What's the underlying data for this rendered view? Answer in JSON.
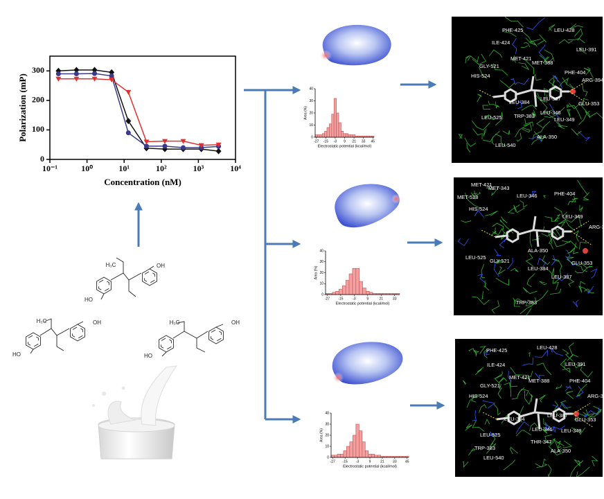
{
  "chart_data": [
    {
      "type": "line",
      "x_label": "Concentration (nM)",
      "y_label": "Polarization (mP)",
      "x_scale": "log",
      "xlim": [
        0.1,
        10000
      ],
      "xticks": [
        {
          "value": 0.1,
          "label": "10⁻¹"
        },
        {
          "value": 1,
          "label": "10⁰"
        },
        {
          "value": 10,
          "label": "10¹"
        },
        {
          "value": 100,
          "label": "10²"
        },
        {
          "value": 1000,
          "label": "10³"
        },
        {
          "value": 10000,
          "label": "10⁴"
        }
      ],
      "ylim": [
        0,
        350
      ],
      "yticks": [
        0,
        100,
        200,
        300
      ],
      "x": [
        0.17,
        0.52,
        1.6,
        4.6,
        13,
        40,
        125,
        390,
        1200,
        3500
      ],
      "series": [
        {
          "color": "#111111",
          "marker": "diamond",
          "values": [
            300,
            303,
            303,
            295,
            130,
            38,
            35,
            35,
            35,
            28
          ]
        },
        {
          "color": "#3a3a8c",
          "marker": "circle",
          "values": [
            290,
            290,
            291,
            283,
            90,
            45,
            45,
            40,
            40,
            44
          ]
        },
        {
          "color": "#e03030",
          "marker": "triangle",
          "values": [
            273,
            273,
            273,
            270,
            228,
            60,
            62,
            62,
            48,
            50
          ]
        }
      ]
    },
    {
      "type": "histogram",
      "x_label": "Electrostatic potential (kcal/mol)",
      "y_label": "Area (%)",
      "bins": [
        -28.5,
        -25.5,
        -22.5,
        -19.5,
        -16.5,
        -13.5,
        -10.5,
        -7.5,
        -4.5,
        -1.5,
        1.5,
        4.5,
        7.5,
        10.5,
        13.5,
        16.5,
        19.5,
        22.5,
        25.5,
        28.5,
        31.5,
        34.5,
        37.5,
        40.5,
        43.5,
        46.5
      ],
      "values": [
        2,
        2,
        2,
        3,
        5,
        8,
        11,
        19,
        32,
        20,
        12,
        5,
        3,
        3,
        2,
        2,
        2,
        1,
        1,
        1,
        1,
        1,
        1,
        1,
        1
      ],
      "xlim": [
        -28.5,
        46.5
      ],
      "xticks": [
        -27,
        -15,
        -3,
        9,
        21,
        33,
        45
      ],
      "ylim": [
        0,
        40
      ],
      "yticks": [
        0,
        10,
        20,
        30,
        40
      ],
      "color": "#f2a0a0"
    },
    {
      "type": "histogram",
      "x_label": "Electrostatic potential (kcal/mol)",
      "y_label": "Area (%)",
      "bins": [
        -28.5,
        -25.5,
        -22.5,
        -19.5,
        -16.5,
        -13.5,
        -10.5,
        -7.5,
        -4.5,
        -1.5,
        1.5,
        4.5,
        7.5,
        10.5,
        13.5,
        16.5,
        19.5,
        22.5,
        25.5,
        28.5,
        31.5,
        34.5,
        37.5
      ],
      "values": [
        1,
        1,
        2,
        3,
        5,
        8,
        13,
        19,
        24,
        24,
        12,
        6,
        3,
        2,
        1,
        1,
        1,
        1,
        1,
        1,
        1,
        1
      ],
      "xlim": [
        -28.5,
        37.5
      ],
      "xticks": [
        -27,
        -15,
        -3,
        9,
        21,
        33
      ],
      "ylim": [
        0,
        40
      ],
      "yticks": [
        0,
        10,
        20,
        30,
        40
      ],
      "color": "#f2a0a0"
    },
    {
      "type": "histogram",
      "x_label": "Electrostatic potential (kcal/mol)",
      "y_label": "Area (%)",
      "bins": [
        -28.5,
        -25.5,
        -22.5,
        -19.5,
        -16.5,
        -13.5,
        -10.5,
        -7.5,
        -4.5,
        -1.5,
        1.5,
        4.5,
        7.5,
        10.5,
        13.5,
        16.5,
        19.5,
        22.5,
        25.5,
        28.5,
        31.5,
        34.5,
        37.5,
        40.5,
        43.5,
        46.5
      ],
      "values": [
        2,
        2,
        3,
        3,
        6,
        10,
        14,
        20,
        30,
        24,
        14,
        6,
        3,
        3,
        2,
        2,
        1,
        1,
        1,
        1,
        1,
        1,
        1,
        1,
        1
      ],
      "xlim": [
        -28.5,
        46.5
      ],
      "xticks": [
        -27,
        -15,
        -3,
        9,
        21,
        33,
        45
      ],
      "ylim": [
        0,
        40
      ],
      "yticks": [
        0,
        10,
        20,
        30,
        40
      ],
      "color": "#f2a0a0"
    }
  ],
  "molecules": [
    {
      "methyl": "H₃C",
      "hydroxyl_top": "OH",
      "hydroxyl_bottom": "HO"
    },
    {
      "methyl": "H₃C",
      "hydroxyl_top": "OH",
      "hydroxyl_bottom": "HO"
    },
    {
      "methyl": "H₃C",
      "hydroxyl_top": "OH",
      "hydroxyl_bottom": "HO"
    }
  ],
  "docking_panels": [
    {
      "residues": [
        "PHE-425",
        "LEU-428",
        "ILE-424",
        "LEU-391",
        "MET-421",
        "MET-388",
        "GLY-521",
        "PHE-404",
        "HIS-524",
        "ARG-394",
        "LEU-387",
        "GLU-353",
        "LEU-384",
        "LEU-346",
        "TRP-383",
        "LEU-349",
        "LEU-525",
        "ALA-350",
        "LEU-540"
      ]
    },
    {
      "residues": [
        "MET-421",
        "MET-343",
        "MET-528",
        "LEU-346",
        "PHE-404",
        "HIS-524",
        "LEU-349",
        "ARG-3",
        "ALA-350",
        "LEU-525",
        "GLY-521",
        "GLU-353",
        "LEU-384",
        "LEU-387",
        "TRP-383"
      ]
    },
    {
      "residues": [
        "PHE-425",
        "LEU-428",
        "ILE-424",
        "LEU-391",
        "MET-421",
        "MET-388",
        "PHE-404",
        "GLY-521",
        "ARG-39",
        "HIS-524",
        "LEU-387",
        "GLU-353",
        "LEU-384",
        "LEU-346",
        "LEU-349",
        "THR-347",
        "LEU-525",
        "TRP-383",
        "ALA-350",
        "LEU-540"
      ]
    }
  ]
}
